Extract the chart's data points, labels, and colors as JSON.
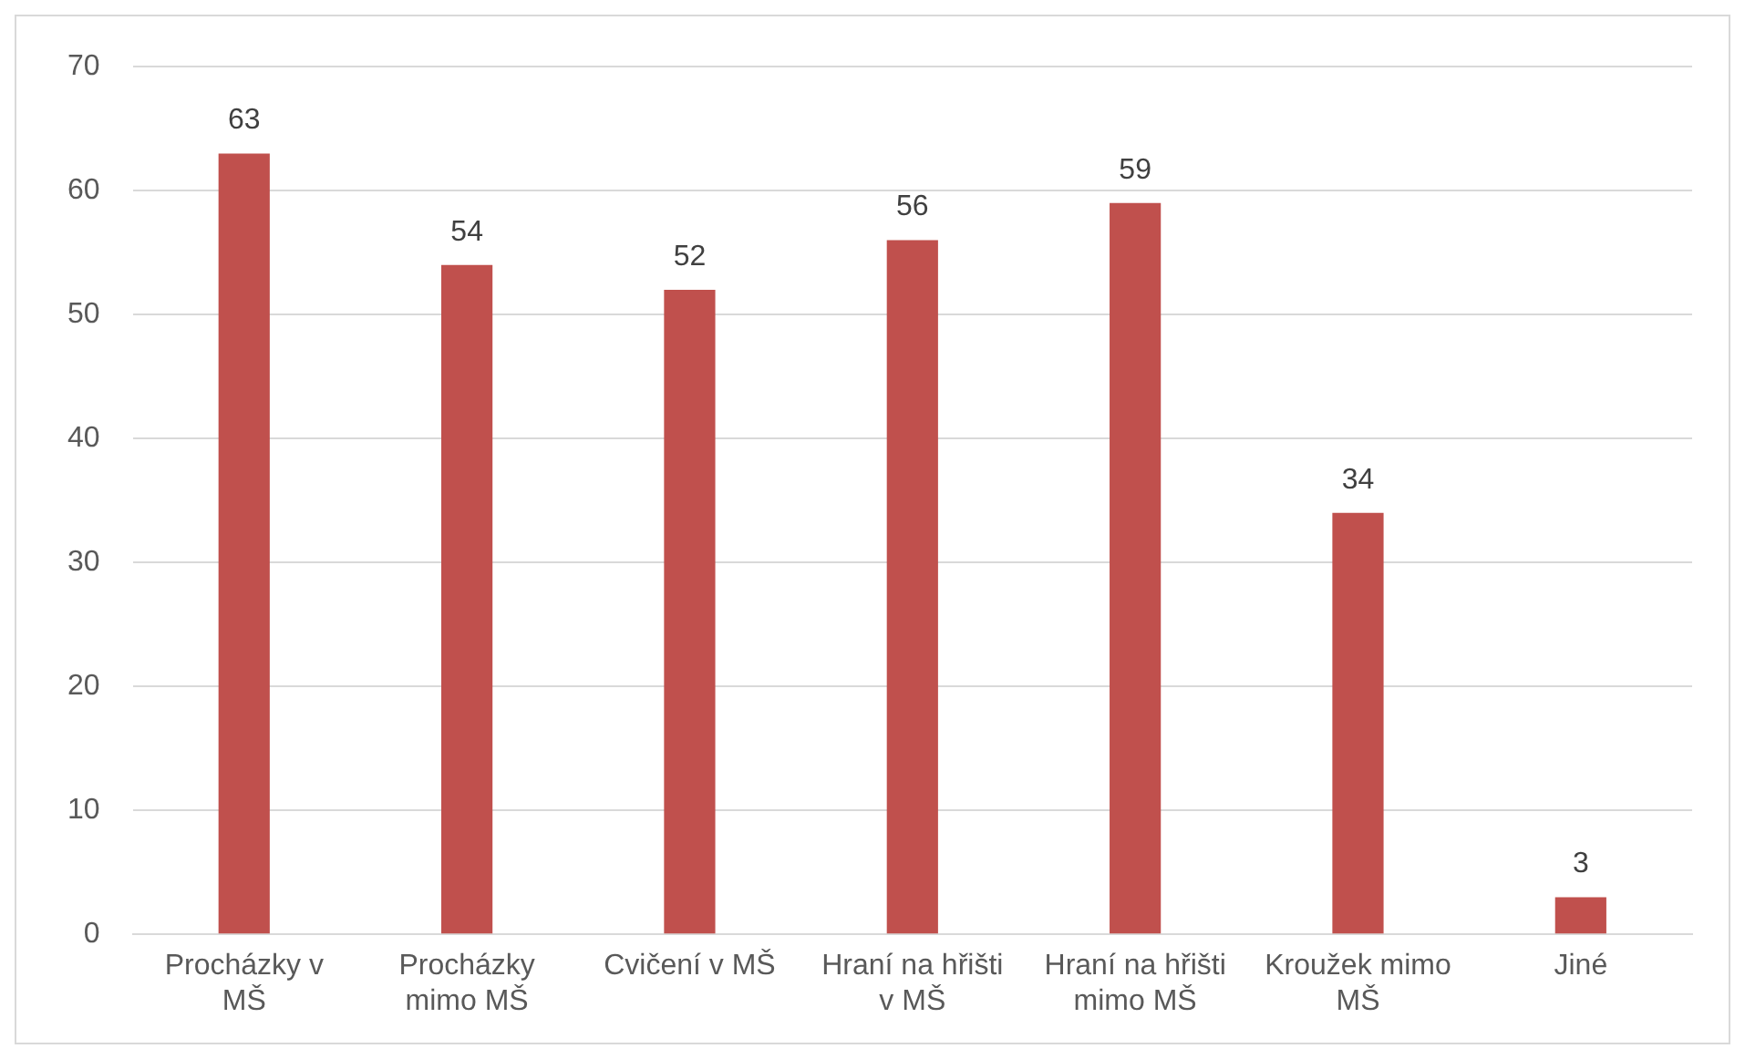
{
  "chart_data": {
    "type": "bar",
    "categories": [
      "Procházky v MŠ",
      "Procházky mimo MŠ",
      "Cvičení v MŠ",
      "Hraní na hřišti v MŠ",
      "Hraní na hřišti mimo MŠ",
      "Kroužek mimo MŠ",
      "Jiné"
    ],
    "values": [
      63,
      54,
      52,
      56,
      59,
      34,
      3
    ],
    "color": "#c0504d",
    "ylim": [
      0,
      70
    ],
    "yticks": [
      0,
      10,
      20,
      30,
      40,
      50,
      60,
      70
    ],
    "grid": "y",
    "data_labels": true
  }
}
